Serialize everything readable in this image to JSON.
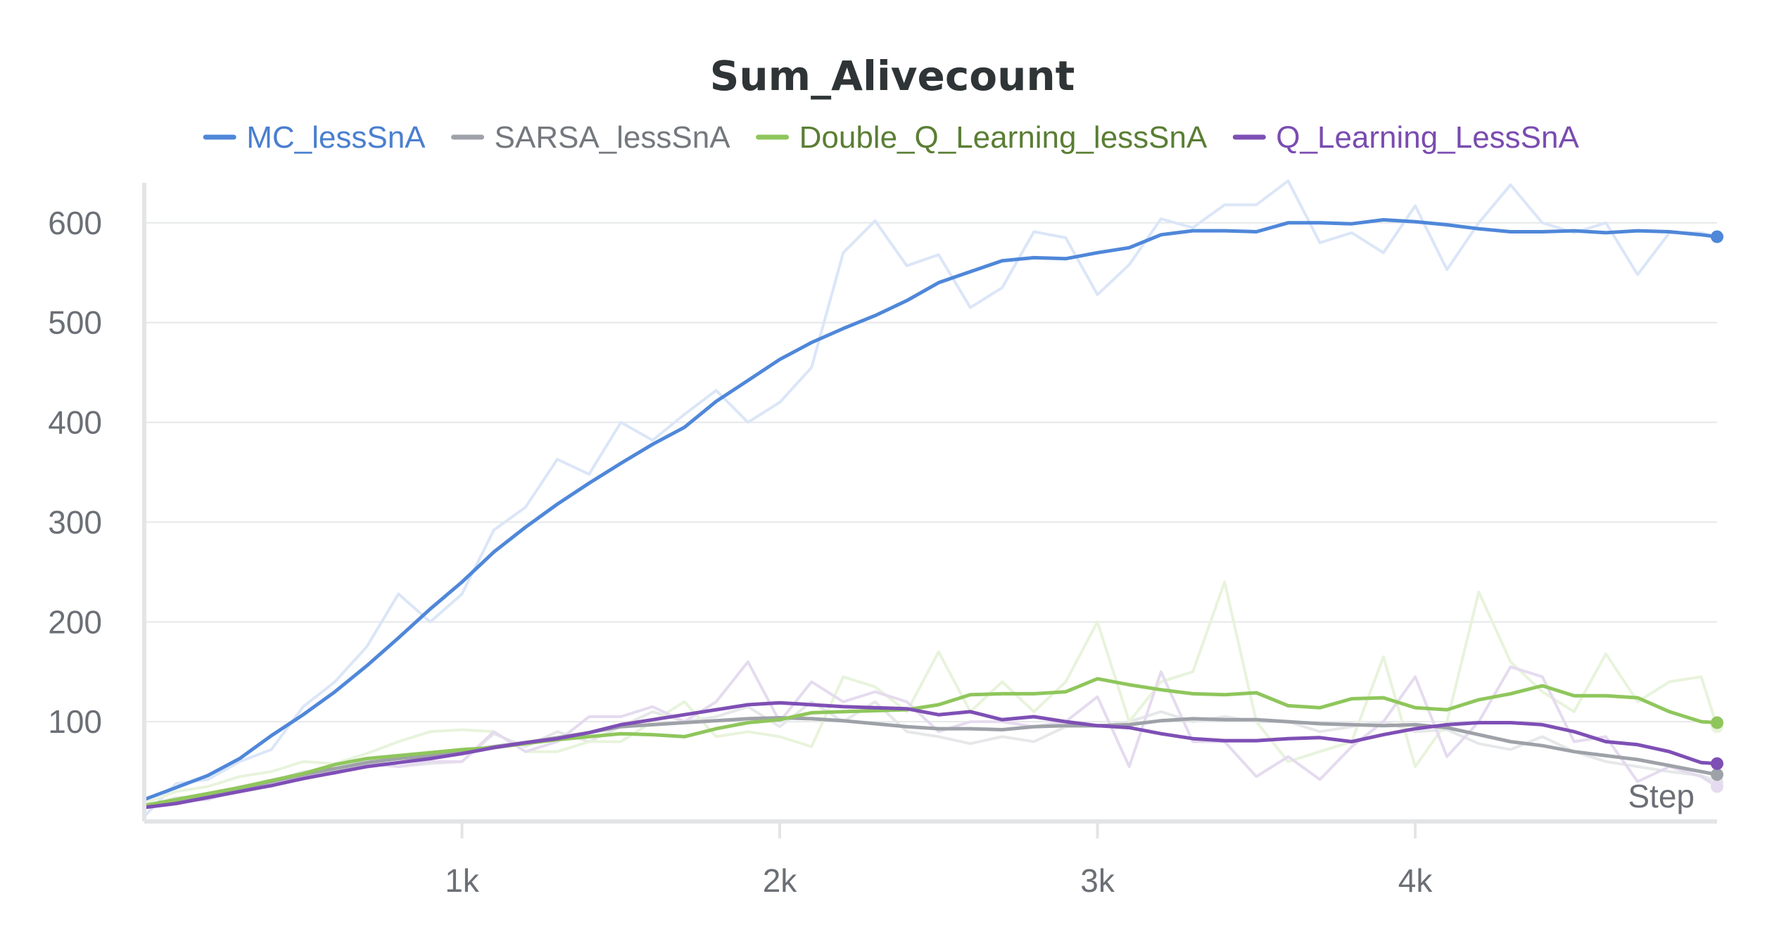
{
  "chart_data": {
    "type": "line",
    "title": "Sum_Alivecount",
    "xlabel": "Step",
    "ylabel": "",
    "xlim": [
      0,
      4950
    ],
    "ylim": [
      0,
      640
    ],
    "x_ticks": [
      1000,
      2000,
      3000,
      4000
    ],
    "x_tick_labels": [
      "1k",
      "2k",
      "3k",
      "4k"
    ],
    "y_ticks": [
      100,
      200,
      300,
      400,
      500,
      600
    ],
    "y_tick_labels": [
      "100",
      "200",
      "300",
      "400",
      "500",
      "600"
    ],
    "grid": true,
    "legend_position": "top-center",
    "x": [
      0,
      100,
      200,
      300,
      400,
      500,
      600,
      700,
      800,
      900,
      1000,
      1100,
      1200,
      1300,
      1400,
      1500,
      1600,
      1700,
      1800,
      1900,
      2000,
      2100,
      2200,
      2300,
      2400,
      2500,
      2600,
      2700,
      2800,
      2900,
      3000,
      3100,
      3200,
      3300,
      3400,
      3500,
      3600,
      3700,
      3800,
      3900,
      4000,
      4100,
      4200,
      4300,
      4400,
      4500,
      4600,
      4700,
      4800,
      4900,
      4950
    ],
    "series": [
      {
        "name": "MC_lessSnA",
        "color": "#4f87d9",
        "raw_color": "#dbe6f7",
        "values": [
          22,
          34,
          46,
          63,
          86,
          107,
          130,
          156,
          184,
          213,
          240,
          270,
          295,
          318,
          339,
          359,
          378,
          395,
          421,
          442,
          463,
          480,
          494,
          507,
          522,
          540,
          551,
          562,
          565,
          564,
          570,
          575,
          588,
          592,
          592,
          591,
          600,
          600,
          599,
          603,
          601,
          598,
          594,
          591,
          591,
          592,
          590,
          592,
          591,
          588,
          586
        ],
        "raw": [
          5,
          38,
          42,
          60,
          72,
          115,
          140,
          175,
          228,
          200,
          228,
          292,
          315,
          363,
          348,
          400,
          382,
          408,
          432,
          400,
          420,
          455,
          570,
          602,
          557,
          568,
          515,
          535,
          591,
          585,
          528,
          558,
          604,
          595,
          618,
          618,
          642,
          580,
          590,
          570,
          617,
          553,
          600,
          638,
          600,
          590,
          600,
          548,
          590,
          590,
          586
        ]
      },
      {
        "name": "SARSA_lessSnA",
        "color": "#9ea2a8",
        "raw_color": "#e6e7e9",
        "values": [
          14,
          20,
          27,
          33,
          40,
          47,
          53,
          59,
          63,
          66,
          70,
          75,
          79,
          84,
          89,
          95,
          97,
          99,
          101,
          103,
          104,
          103,
          101,
          98,
          95,
          93,
          93,
          92,
          95,
          96,
          96,
          97,
          101,
          103,
          102,
          102,
          100,
          98,
          97,
          96,
          97,
          94,
          87,
          80,
          76,
          70,
          66,
          62,
          56,
          50,
          47
        ],
        "raw": [
          14,
          24,
          25,
          35,
          40,
          50,
          50,
          62,
          55,
          58,
          60,
          88,
          75,
          90,
          80,
          95,
          110,
          100,
          105,
          115,
          95,
          120,
          100,
          120,
          90,
          85,
          78,
          85,
          80,
          95,
          95,
          100,
          110,
          100,
          105,
          100,
          100,
          90,
          95,
          100,
          90,
          92,
          78,
          72,
          85,
          70,
          60,
          55,
          50,
          46,
          40
        ]
      },
      {
        "name": "Double_Q_Learning_lessSnA",
        "color": "#8fc65c",
        "raw_color": "#e8f3dc",
        "values": [
          16,
          22,
          28,
          34,
          41,
          48,
          57,
          63,
          66,
          69,
          72,
          74,
          78,
          82,
          85,
          88,
          87,
          85,
          93,
          99,
          102,
          109,
          110,
          111,
          112,
          117,
          127,
          128,
          128,
          130,
          143,
          137,
          132,
          128,
          127,
          129,
          116,
          114,
          123,
          124,
          114,
          112,
          122,
          128,
          136,
          126,
          126,
          124,
          110,
          100,
          99
        ],
        "raw": [
          18,
          30,
          35,
          45,
          50,
          60,
          58,
          68,
          80,
          90,
          92,
          90,
          70,
          70,
          80,
          80,
          100,
          120,
          85,
          90,
          85,
          75,
          145,
          135,
          110,
          170,
          110,
          140,
          110,
          140,
          200,
          100,
          140,
          150,
          240,
          100,
          60,
          70,
          80,
          165,
          55,
          100,
          230,
          160,
          130,
          110,
          168,
          120,
          140,
          145,
          95
        ]
      },
      {
        "name": "Q_Learning_LessSnA",
        "color": "#7e4fb5",
        "raw_color": "#e5dbef",
        "values": [
          14,
          18,
          24,
          30,
          36,
          43,
          49,
          55,
          59,
          63,
          68,
          74,
          79,
          83,
          89,
          97,
          102,
          107,
          112,
          117,
          119,
          117,
          115,
          114,
          113,
          107,
          110,
          102,
          105,
          100,
          96,
          94,
          88,
          83,
          81,
          81,
          83,
          84,
          80,
          87,
          93,
          97,
          99,
          99,
          97,
          90,
          80,
          77,
          70,
          59,
          58
        ],
        "raw": [
          14,
          20,
          22,
          32,
          35,
          45,
          48,
          58,
          55,
          60,
          60,
          90,
          70,
          80,
          105,
          105,
          115,
          100,
          120,
          160,
          100,
          140,
          120,
          130,
          120,
          90,
          100,
          100,
          95,
          100,
          125,
          55,
          150,
          80,
          80,
          45,
          65,
          42,
          75,
          100,
          145,
          65,
          100,
          155,
          145,
          80,
          85,
          40,
          55,
          45,
          35
        ]
      }
    ]
  }
}
